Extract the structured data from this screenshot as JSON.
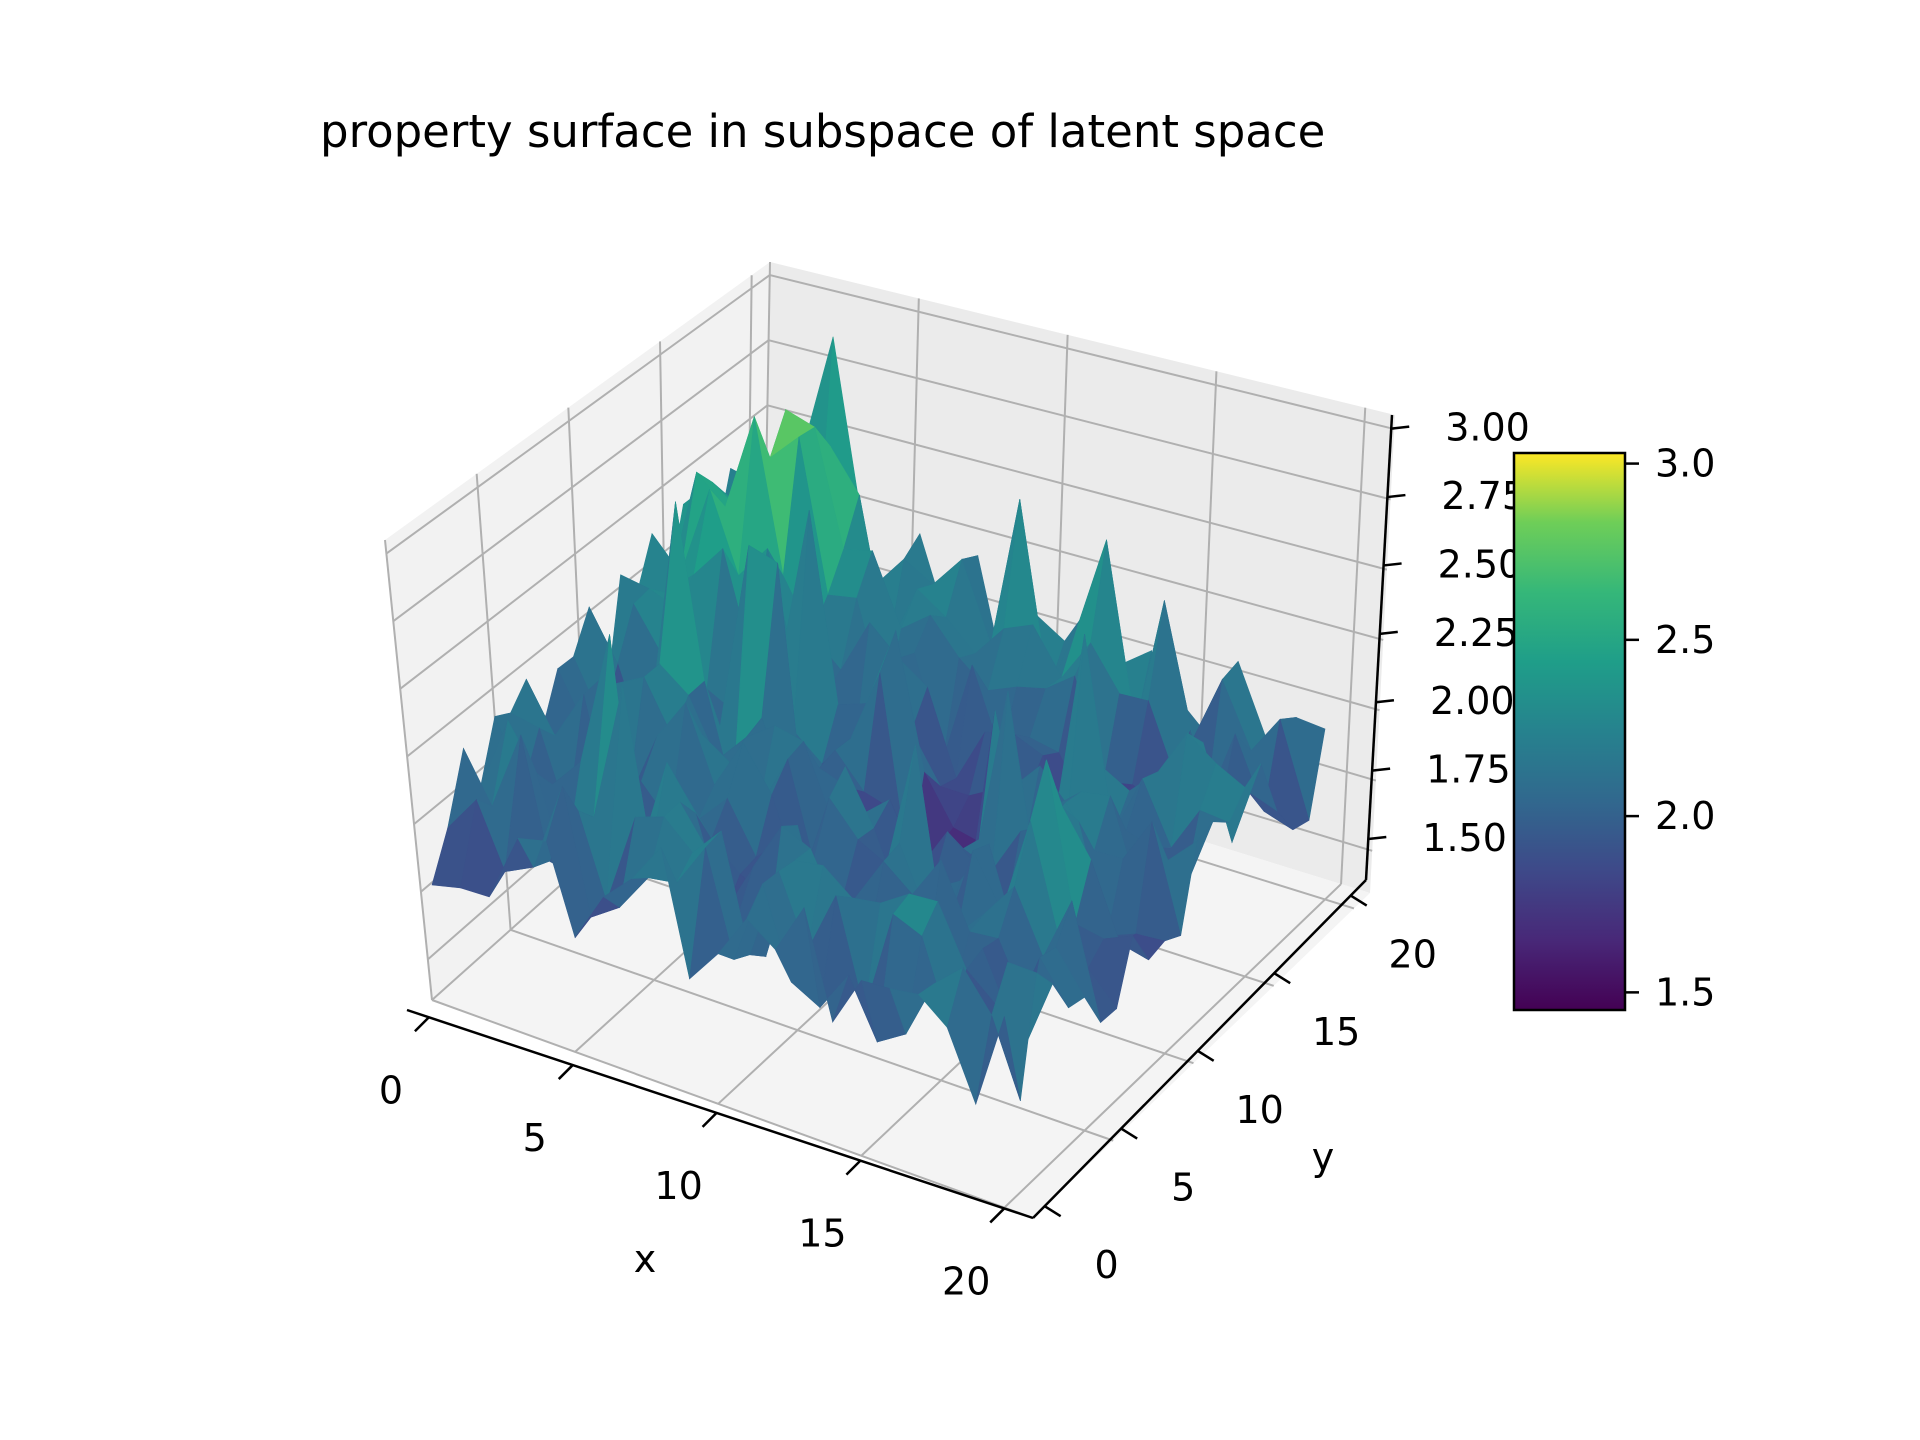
{
  "chart_data": {
    "type": "surface",
    "title": "property surface in subspace of latent space",
    "xlabel": "x",
    "ylabel": "y",
    "zlabel": "",
    "xlim": [
      0,
      21
    ],
    "ylim": [
      0,
      21
    ],
    "zlim": [
      1.35,
      3.05
    ],
    "x_ticks": [
      "0",
      "5",
      "10",
      "15",
      "20"
    ],
    "y_ticks": [
      "0",
      "5",
      "10",
      "15",
      "20"
    ],
    "z_ticks": [
      "1.50",
      "1.75",
      "2.00",
      "2.25",
      "2.50",
      "2.75",
      "3.00"
    ],
    "colorbar": {
      "colormap": "viridis",
      "range": [
        1.45,
        3.03
      ],
      "ticks": [
        "1.5",
        "2.0",
        "2.5",
        "3.0"
      ]
    },
    "grid": true,
    "colors": {
      "pane_back": "#ebebeb",
      "pane_side": "#f2f2f2",
      "pane_floor": "#f4f4f4",
      "gridline": "#b0b0b0"
    }
  }
}
